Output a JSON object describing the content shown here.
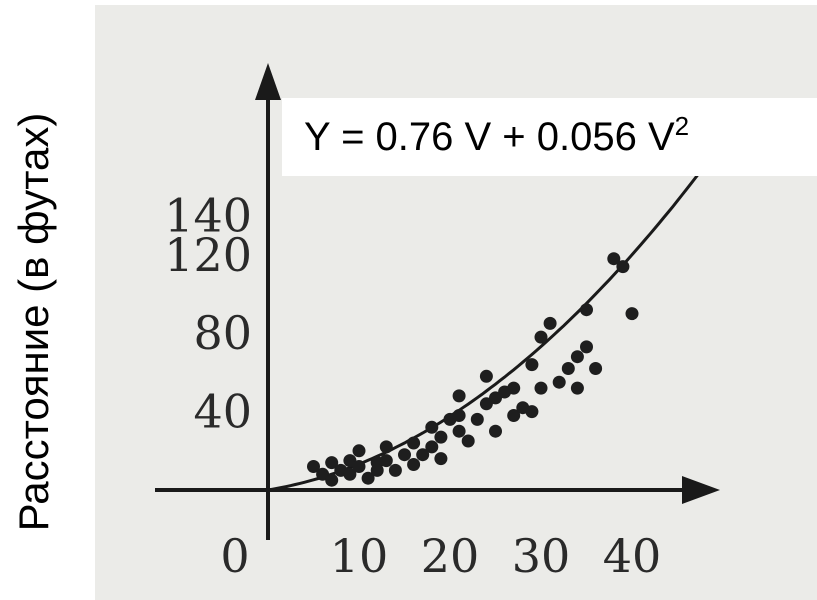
{
  "chart_data": {
    "type": "scatter",
    "ylabel": "Расстояние (в футах)",
    "equation": {
      "lhs": "Y = 0.76 V + 0.056 V",
      "sup": "2"
    },
    "fit": {
      "a": 0.76,
      "b": 0.056
    },
    "xlim": [
      0,
      48
    ],
    "ylim": [
      0,
      150
    ],
    "x_ticks": [
      "10",
      "20",
      "30",
      "40"
    ],
    "y_ticks": [
      "40",
      "80",
      "120",
      "140"
    ],
    "origin_label": "0",
    "grid": false,
    "points": [
      [
        5,
        12
      ],
      [
        6,
        8
      ],
      [
        7,
        5
      ],
      [
        7,
        14
      ],
      [
        8,
        10
      ],
      [
        9,
        8
      ],
      [
        9,
        15
      ],
      [
        10,
        12
      ],
      [
        10,
        20
      ],
      [
        11,
        6
      ],
      [
        12,
        14
      ],
      [
        12,
        10
      ],
      [
        13,
        22
      ],
      [
        13,
        15
      ],
      [
        14,
        10
      ],
      [
        15,
        18
      ],
      [
        16,
        24
      ],
      [
        16,
        13
      ],
      [
        17,
        18
      ],
      [
        18,
        32
      ],
      [
        18,
        22
      ],
      [
        19,
        16
      ],
      [
        19,
        27
      ],
      [
        20,
        36
      ],
      [
        21,
        30
      ],
      [
        21,
        38
      ],
      [
        21,
        48
      ],
      [
        22,
        25
      ],
      [
        23,
        36
      ],
      [
        24,
        58
      ],
      [
        24,
        44
      ],
      [
        25,
        30
      ],
      [
        25,
        47
      ],
      [
        26,
        50
      ],
      [
        27,
        38
      ],
      [
        27,
        52
      ],
      [
        28,
        42
      ],
      [
        29,
        64
      ],
      [
        29,
        40
      ],
      [
        30,
        52
      ],
      [
        30,
        78
      ],
      [
        31,
        85
      ],
      [
        32,
        55
      ],
      [
        33,
        62
      ],
      [
        34,
        52
      ],
      [
        34,
        68
      ],
      [
        35,
        73
      ],
      [
        35,
        92
      ],
      [
        36,
        62
      ],
      [
        38,
        118
      ],
      [
        39,
        114
      ],
      [
        40,
        90
      ]
    ]
  }
}
